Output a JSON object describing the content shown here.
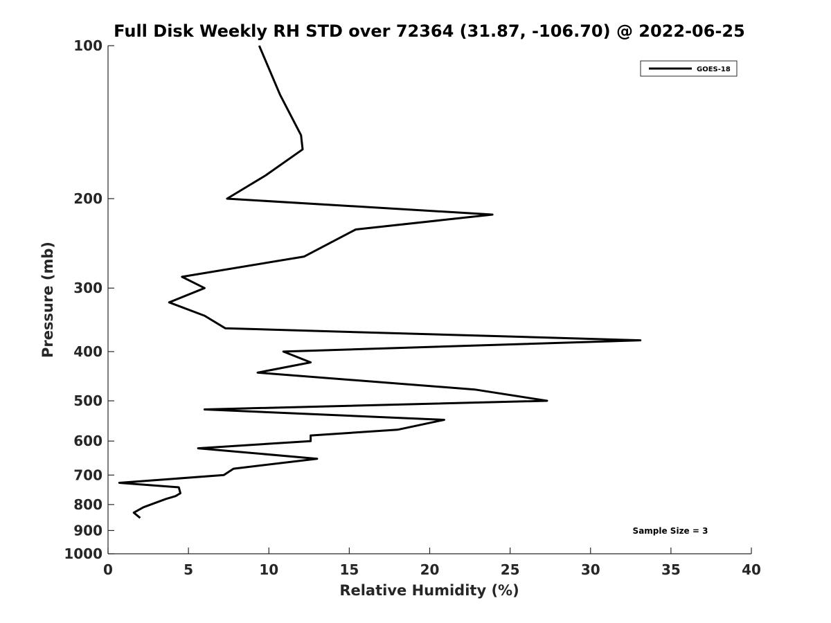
{
  "chart_data": {
    "type": "line",
    "title": "Full Disk Weekly RH STD over 72364 (31.87, -106.70) @ 2022-06-25",
    "xlabel": "Relative Humidity (%)",
    "ylabel": "Pressure (mb)",
    "xlim": [
      0,
      40
    ],
    "ylim": [
      100,
      1000
    ],
    "y_scale": "log",
    "y_reversed": true,
    "x_ticks": [
      0,
      5,
      10,
      15,
      20,
      25,
      30,
      35,
      40
    ],
    "y_ticks": [
      100,
      200,
      300,
      400,
      500,
      600,
      700,
      800,
      900,
      1000
    ],
    "grid": false,
    "legend_position": "top-right",
    "series": [
      {
        "name": "GOES-18",
        "color": "#000000",
        "points": [
          [
            9.4,
            100
          ],
          [
            10.7,
            125
          ],
          [
            12.0,
            150
          ],
          [
            12.1,
            160
          ],
          [
            9.8,
            180
          ],
          [
            7.4,
            200
          ],
          [
            23.9,
            215
          ],
          [
            15.4,
            230
          ],
          [
            12.2,
            260
          ],
          [
            4.6,
            285
          ],
          [
            6.0,
            300
          ],
          [
            3.8,
            320
          ],
          [
            6.0,
            340
          ],
          [
            7.3,
            360
          ],
          [
            33.1,
            380
          ],
          [
            10.9,
            400
          ],
          [
            12.6,
            420
          ],
          [
            9.3,
            440
          ],
          [
            22.8,
            475
          ],
          [
            27.3,
            500
          ],
          [
            6.0,
            520
          ],
          [
            20.9,
            545
          ],
          [
            18.0,
            570
          ],
          [
            12.6,
            585
          ],
          [
            12.6,
            600
          ],
          [
            5.6,
            620
          ],
          [
            13.0,
            650
          ],
          [
            7.8,
            680
          ],
          [
            7.2,
            700
          ],
          [
            0.7,
            725
          ],
          [
            4.4,
            740
          ],
          [
            4.5,
            760
          ],
          [
            4.2,
            770
          ],
          [
            3.6,
            780
          ],
          [
            2.2,
            810
          ],
          [
            1.6,
            830
          ],
          [
            2.0,
            850
          ]
        ]
      }
    ],
    "annotation": "Sample Size = 3"
  }
}
